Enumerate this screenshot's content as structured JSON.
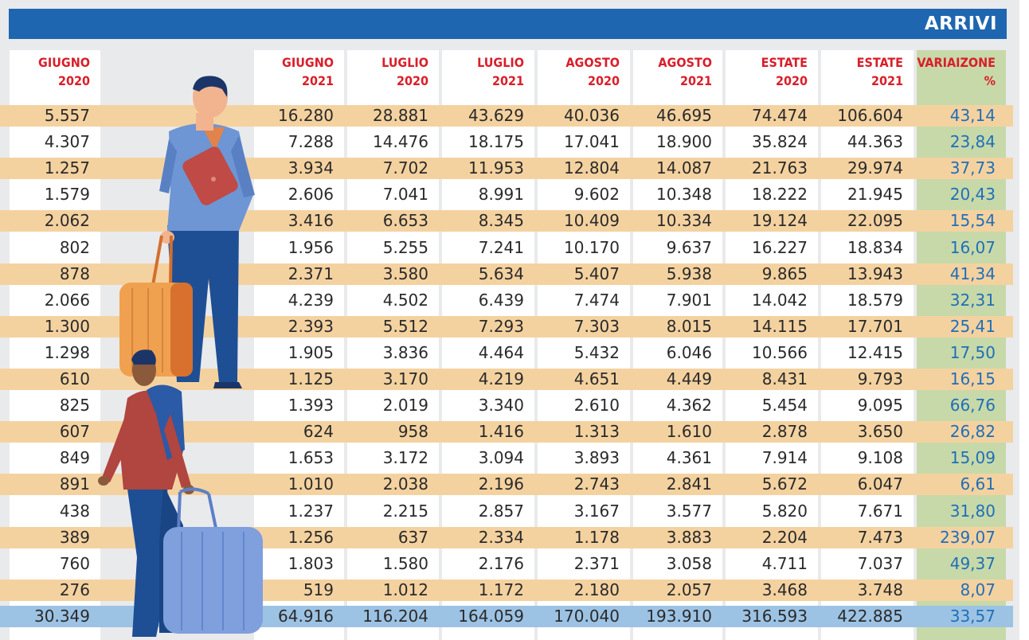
{
  "title": "ARRIVI",
  "headers": [
    [
      "GIUGNO",
      "2020"
    ],
    [
      "GIUGNO",
      "2021"
    ],
    [
      "LUGLIO",
      "2020"
    ],
    [
      "LUGLIO",
      "2021"
    ],
    [
      "AGOSTO",
      "2020"
    ],
    [
      "AGOSTO",
      "2021"
    ],
    [
      "ESTATE",
      "2020"
    ],
    [
      "ESTATE",
      "2021"
    ],
    [
      "VARIAIZONE",
      "%"
    ]
  ],
  "rows": [
    [
      "5.557",
      "16.280",
      "28.881",
      "43.629",
      "40.036",
      "46.695",
      "74.474",
      "106.604",
      "43,14"
    ],
    [
      "4.307",
      "7.288",
      "14.476",
      "18.175",
      "17.041",
      "18.900",
      "35.824",
      "44.363",
      "23,84"
    ],
    [
      "1.257",
      "3.934",
      "7.702",
      "11.953",
      "12.804",
      "14.087",
      "21.763",
      "29.974",
      "37,73"
    ],
    [
      "1.579",
      "2.606",
      "7.041",
      "8.991",
      "9.602",
      "10.348",
      "18.222",
      "21.945",
      "20,43"
    ],
    [
      "2.062",
      "3.416",
      "6.653",
      "8.345",
      "10.409",
      "10.334",
      "19.124",
      "22.095",
      "15,54"
    ],
    [
      "802",
      "1.956",
      "5.255",
      "7.241",
      "10.170",
      "9.637",
      "16.227",
      "18.834",
      "16,07"
    ],
    [
      "878",
      "2.371",
      "3.580",
      "5.634",
      "5.407",
      "5.938",
      "9.865",
      "13.943",
      "41,34"
    ],
    [
      "2.066",
      "4.239",
      "4.502",
      "6.439",
      "7.474",
      "7.901",
      "14.042",
      "18.579",
      "32,31"
    ],
    [
      "1.300",
      "2.393",
      "5.512",
      "7.293",
      "7.303",
      "8.015",
      "14.115",
      "17.701",
      "25,41"
    ],
    [
      "1.298",
      "1.905",
      "3.836",
      "4.464",
      "5.432",
      "6.046",
      "10.566",
      "12.415",
      "17,50"
    ],
    [
      "610",
      "1.125",
      "3.170",
      "4.219",
      "4.651",
      "4.449",
      "8.431",
      "9.793",
      "16,15"
    ],
    [
      "825",
      "1.393",
      "2.019",
      "3.340",
      "2.610",
      "4.362",
      "5.454",
      "9.095",
      "66,76"
    ],
    [
      "607",
      "624",
      "958",
      "1.416",
      "1.313",
      "1.610",
      "2.878",
      "3.650",
      "26,82"
    ],
    [
      "849",
      "1.653",
      "3.172",
      "3.094",
      "3.893",
      "4.361",
      "7.914",
      "9.108",
      "15,09"
    ],
    [
      "891",
      "1.010",
      "2.038",
      "2.196",
      "2.743",
      "2.841",
      "5.672",
      "6.047",
      "6,61"
    ],
    [
      "438",
      "1.237",
      "2.215",
      "2.857",
      "3.167",
      "3.577",
      "5.820",
      "7.671",
      "31,80"
    ],
    [
      "389",
      "1.256",
      "637",
      "2.334",
      "1.178",
      "3.883",
      "2.204",
      "7.473",
      "239,07"
    ],
    [
      "760",
      "1.803",
      "1.580",
      "2.176",
      "2.371",
      "3.058",
      "4.711",
      "7.037",
      "49,37"
    ],
    [
      "276",
      "519",
      "1.012",
      "1.172",
      "2.180",
      "2.057",
      "3.468",
      "3.748",
      "8,07"
    ],
    [
      "30.349",
      "64.916",
      "116.204",
      "164.059",
      "170.040",
      "193.910",
      "316.593",
      "422.885",
      "33,57"
    ]
  ],
  "colors": {
    "banner": "#1f66b0",
    "header_text": "#d91e2a",
    "band": "#f4d2a0",
    "total_band": "#9dc3e4",
    "variation_column": "#c7d9a9",
    "variation_text": "#1f6fb8"
  },
  "illustration": {
    "figures": [
      "traveler-with-tablet-icon",
      "traveler-with-backpack-icon"
    ],
    "luggage": [
      "orange-suitcase-icon",
      "blue-suitcase-icon"
    ]
  }
}
